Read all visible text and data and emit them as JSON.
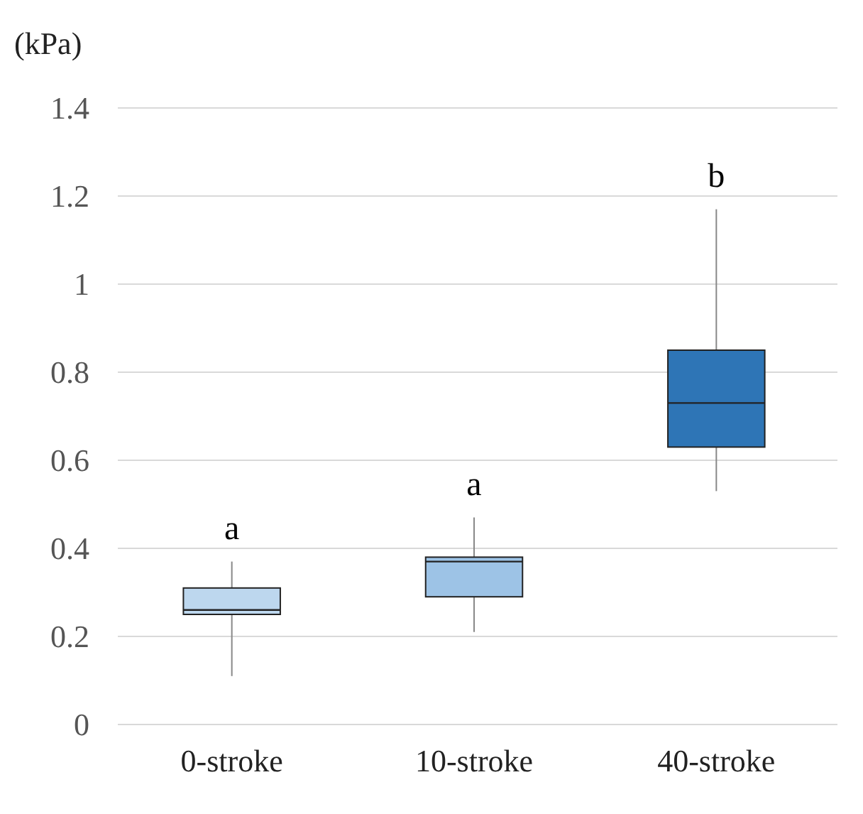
{
  "chart_data": {
    "type": "box",
    "ylabel": "(kPa)",
    "categories": [
      "0-stroke",
      "10-stroke",
      "40-stroke"
    ],
    "boxes": [
      {
        "low": 0.11,
        "q1": 0.25,
        "median": 0.26,
        "q3": 0.31,
        "high": 0.37
      },
      {
        "low": 0.21,
        "q1": 0.29,
        "median": 0.37,
        "q3": 0.38,
        "high": 0.47
      },
      {
        "low": 0.53,
        "q1": 0.63,
        "median": 0.73,
        "q3": 0.85,
        "high": 1.17
      }
    ],
    "colors": [
      "#bdd7ee",
      "#9dc3e6",
      "#2e75b6"
    ],
    "ylim": [
      0,
      1.4
    ],
    "yticks": [
      0,
      0.2,
      0.4,
      0.6,
      0.8,
      1,
      1.2,
      1.4
    ],
    "grid": "y",
    "annotations": [
      "a",
      "a",
      "b"
    ]
  }
}
